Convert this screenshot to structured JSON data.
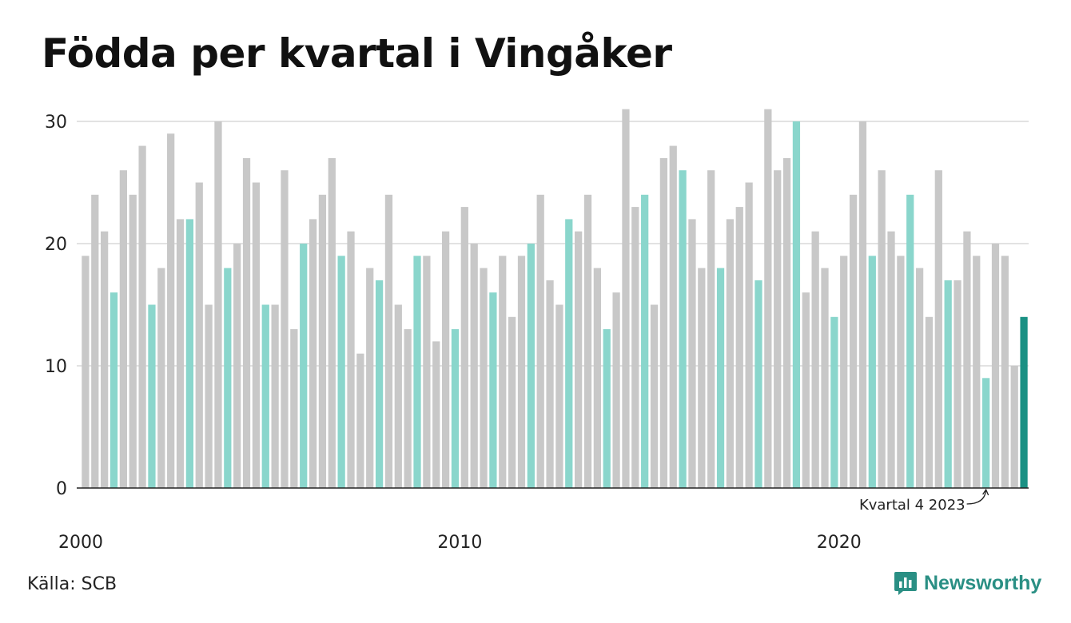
{
  "title": "Födda per kvartal i Vingåker",
  "source": "Källa: SCB",
  "brand": {
    "name": "Newsworthy",
    "icon": "newsworthy-logo-icon"
  },
  "colors": {
    "base": "#c8c8c8",
    "q4": "#8ad6cc",
    "highlight": "#1a9184",
    "axis": "#222222",
    "grid": "#e2e2e2"
  },
  "chart_data": {
    "type": "bar",
    "title": "Födda per kvartal i Vingåker",
    "xlabel": "",
    "ylabel": "",
    "ylim": [
      0,
      31
    ],
    "yticks": [
      0,
      10,
      20,
      30
    ],
    "xticks": [
      2000,
      2010,
      2020
    ],
    "grid": true,
    "start": "2000 Q1",
    "highlight_rule": "Quarter 4 bars in teal, latest bar in dark teal",
    "annotation": {
      "text": "Kvartal 4 2023",
      "target_index": 95
    },
    "values": [
      19,
      24,
      21,
      16,
      26,
      24,
      28,
      15,
      18,
      29,
      22,
      22,
      25,
      15,
      30,
      18,
      20,
      27,
      25,
      15,
      15,
      26,
      13,
      20,
      22,
      24,
      27,
      19,
      21,
      11,
      18,
      17,
      24,
      15,
      13,
      19,
      19,
      12,
      21,
      13,
      23,
      20,
      18,
      16,
      19,
      14,
      19,
      20,
      24,
      17,
      15,
      22,
      21,
      24,
      18,
      13,
      16,
      31,
      23,
      24,
      15,
      27,
      28,
      26,
      22,
      18,
      26,
      18,
      22,
      23,
      25,
      17,
      31,
      26,
      27,
      30,
      16,
      21,
      18,
      14,
      19,
      24,
      30,
      19,
      26,
      21,
      19,
      24,
      18,
      14,
      26,
      17,
      17,
      21,
      19,
      9,
      20,
      19,
      10,
      14
    ]
  }
}
